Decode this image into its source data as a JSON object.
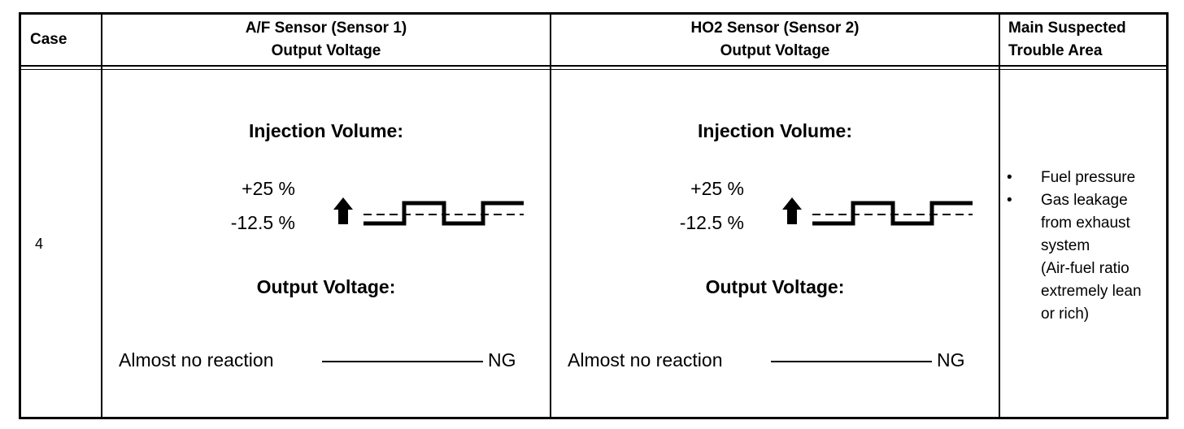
{
  "headers": {
    "case": "Case",
    "af_line1": "A/F Sensor (Sensor 1)",
    "af_line2": "Output Voltage",
    "ho2_line1": "HO2 Sensor (Sensor 2)",
    "ho2_line2": "Output Voltage",
    "trouble_line1": "Main Suspected",
    "trouble_line2": "Trouble Area"
  },
  "row": {
    "case": "4",
    "af": {
      "injection_title": "Injection Volume:",
      "plus": "+25 %",
      "minus": "-12.5 %",
      "output_title": "Output Voltage:",
      "reaction": "Almost no reaction",
      "result": "NG"
    },
    "ho2": {
      "injection_title": "Injection Volume:",
      "plus": "+25 %",
      "minus": "-12.5 %",
      "output_title": "Output Voltage:",
      "reaction": "Almost no reaction",
      "result": "NG"
    },
    "trouble": {
      "bullet": "•",
      "item1": "Fuel pressure",
      "item2_l1": "Gas leakage",
      "item2_l2": "from exhaust",
      "item2_l3": "system",
      "item2_l4": "(Air-fuel ratio",
      "item2_l5": "extremely lean",
      "item2_l6": "or rich)"
    }
  }
}
